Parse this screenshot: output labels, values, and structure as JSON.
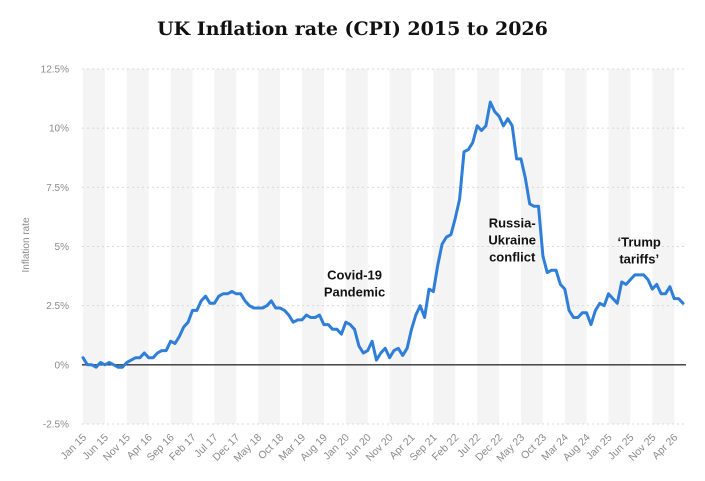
{
  "chart_data": {
    "type": "line",
    "title": "UK Inflation rate (CPI) 2015 to 2026",
    "xlabel": "",
    "ylabel": "Inflation rate",
    "ylim": [
      -2.5,
      12.5
    ],
    "y_ticks": [
      "12.5%",
      "10%",
      "7.5%",
      "5%",
      "2.5%",
      "0%",
      "-2.5%"
    ],
    "y_tick_values": [
      12.5,
      10,
      7.5,
      5,
      2.5,
      0,
      -2.5
    ],
    "x_ticks": [
      "Jan 15",
      "Jun 15",
      "Nov 15",
      "Apr 16",
      "Sep 16",
      "Feb 17",
      "Jul 17",
      "Dec 17",
      "May 18",
      "Oct 18",
      "Mar 19",
      "Aug 19",
      "Jan 20",
      "Jun 20",
      "Nov 20",
      "Apr 21",
      "Sep 21",
      "Feb 22",
      "Jul 22",
      "Dec 22",
      "May 23",
      "Oct 23",
      "Mar 24",
      "Aug 24",
      "Jan 25",
      "Jun 25",
      "Nov 25",
      "Apr 26"
    ],
    "grid": "alternating vertical bands",
    "legend": "none",
    "line_color": "#2f7ed8",
    "annotations": [
      {
        "lines": [
          "Covid-19",
          "Pandemic"
        ],
        "x": "Mar 20",
        "y": 3.6
      },
      {
        "lines": [
          "Russia-",
          "Ukraine",
          "conflict"
        ],
        "x": "Mar 23",
        "y": 5.8
      },
      {
        "lines": [
          "‘Trump",
          "tariffs’"
        ],
        "x": "Aug 25",
        "y": 5.0
      }
    ],
    "series": [
      {
        "x_start": "Jan 15",
        "frequency": "monthly",
        "values": [
          0.3,
          0.0,
          0.0,
          -0.1,
          0.1,
          0.0,
          0.1,
          0.0,
          -0.1,
          -0.1,
          0.1,
          0.2,
          0.3,
          0.3,
          0.5,
          0.3,
          0.3,
          0.5,
          0.6,
          0.6,
          1.0,
          0.9,
          1.2,
          1.6,
          1.8,
          2.3,
          2.3,
          2.7,
          2.9,
          2.6,
          2.6,
          2.9,
          3.0,
          3.0,
          3.1,
          3.0,
          3.0,
          2.7,
          2.5,
          2.4,
          2.4,
          2.4,
          2.5,
          2.7,
          2.4,
          2.4,
          2.3,
          2.1,
          1.8,
          1.9,
          1.9,
          2.1,
          2.0,
          2.0,
          2.1,
          1.7,
          1.7,
          1.5,
          1.5,
          1.3,
          1.8,
          1.7,
          1.5,
          0.8,
          0.5,
          0.6,
          1.0,
          0.2,
          0.5,
          0.7,
          0.3,
          0.6,
          0.7,
          0.4,
          0.7,
          1.5,
          2.1,
          2.5,
          2.0,
          3.2,
          3.1,
          4.2,
          5.1,
          5.4,
          5.5,
          6.2,
          7.0,
          9.0,
          9.1,
          9.4,
          10.1,
          9.9,
          10.1,
          11.1,
          10.7,
          10.5,
          10.1,
          10.4,
          10.1,
          8.7,
          8.7,
          7.9,
          6.8,
          6.7,
          6.7,
          4.6,
          3.9,
          4.0,
          4.0,
          3.4,
          3.2,
          2.3,
          2.0,
          2.0,
          2.2,
          2.2,
          1.7,
          2.3,
          2.6,
          2.5,
          3.0,
          2.8,
          2.6,
          3.5,
          3.4,
          3.6,
          3.8,
          3.8,
          3.8,
          3.6,
          3.2,
          3.4,
          3.0,
          3.0,
          3.3,
          2.8,
          2.8,
          2.6
        ]
      }
    ]
  }
}
